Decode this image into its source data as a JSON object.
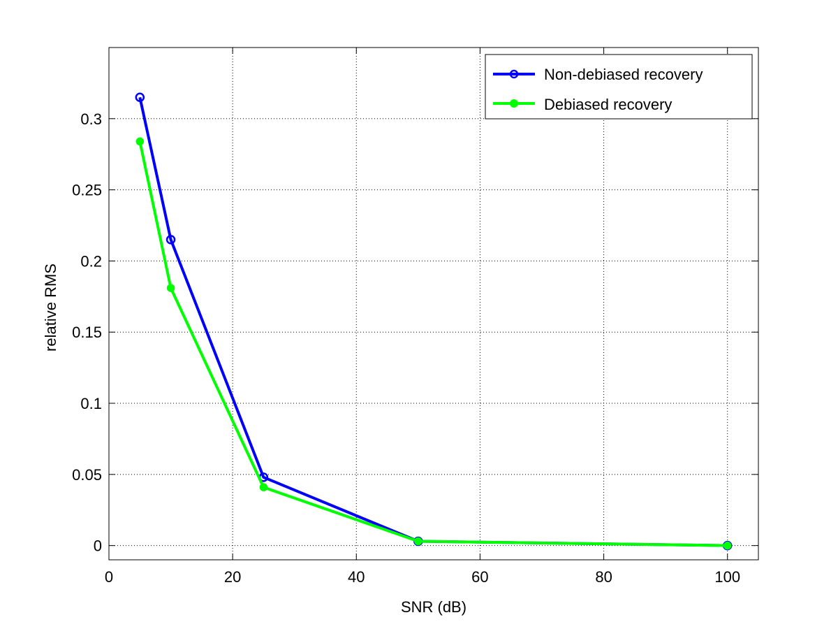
{
  "chart_data": {
    "type": "line",
    "title": "",
    "xlabel": "SNR (dB)",
    "ylabel": "relative RMS",
    "xlim": [
      0,
      105
    ],
    "ylim": [
      -0.01,
      0.35
    ],
    "xticks": [
      0,
      20,
      40,
      60,
      80,
      100
    ],
    "yticks": [
      0,
      0.05,
      0.1,
      0.15,
      0.2,
      0.25,
      0.3
    ],
    "xtick_labels": [
      "0",
      "20",
      "40",
      "60",
      "80",
      "100"
    ],
    "ytick_labels": [
      "0",
      "0.05",
      "0.1",
      "0.15",
      "0.2",
      "0.25",
      "0.3"
    ],
    "grid": true,
    "legend_position": "top-right",
    "x": [
      5,
      10,
      25,
      50,
      100
    ],
    "series": [
      {
        "name": "Non-debiased recovery",
        "values": [
          0.315,
          0.215,
          0.048,
          0.003,
          0.0
        ],
        "color": "#0000ff",
        "marker": "open-circle"
      },
      {
        "name": "Debiased recovery",
        "values": [
          0.284,
          0.181,
          0.041,
          0.003,
          0.0
        ],
        "color": "#00ff00",
        "marker": "filled-circle"
      }
    ]
  }
}
